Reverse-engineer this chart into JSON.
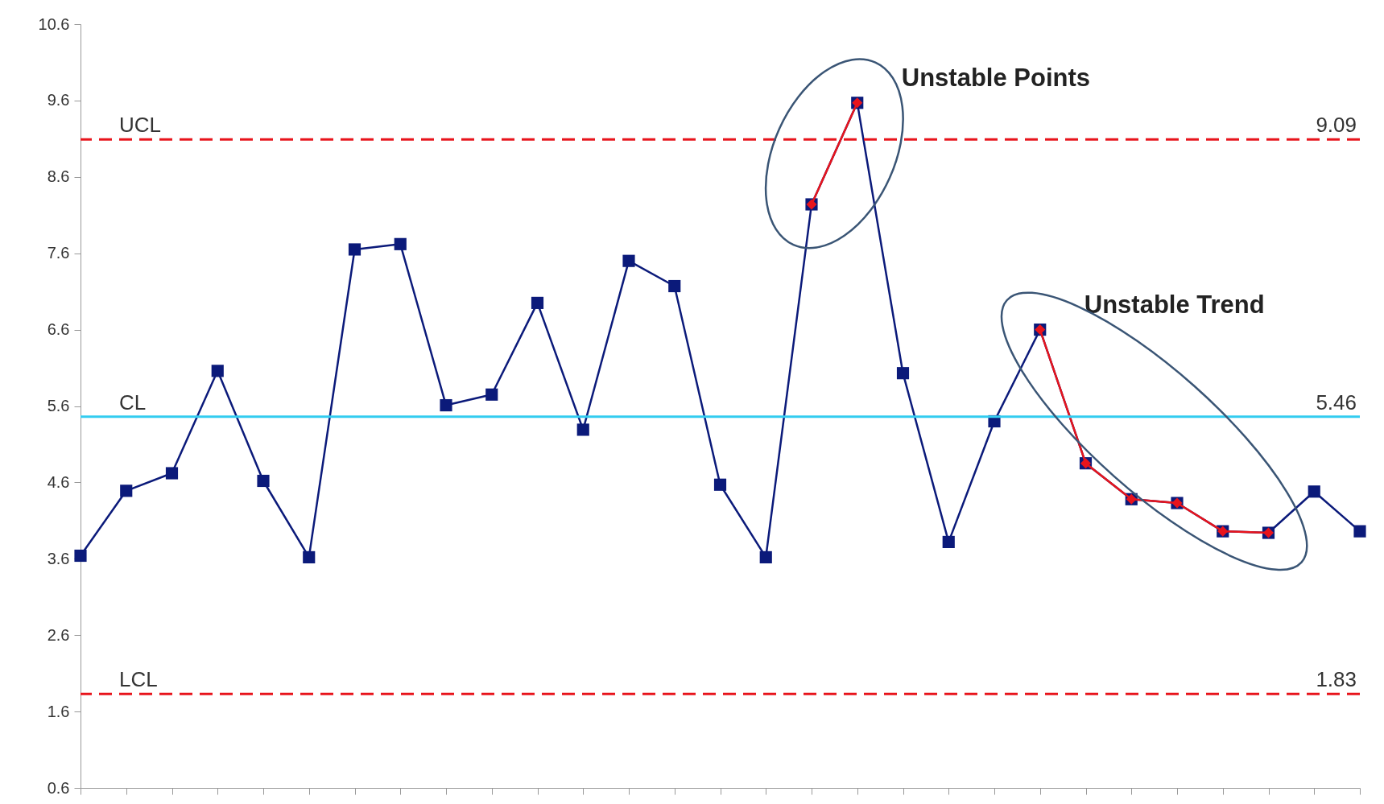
{
  "chart_data": {
    "type": "line",
    "categories": [
      null,
      null,
      null,
      null,
      null,
      null,
      null,
      null,
      null,
      null,
      null,
      null,
      null,
      null,
      null,
      null,
      null,
      null,
      null,
      null,
      null,
      null,
      null,
      null,
      null,
      null,
      null,
      null,
      null
    ],
    "series": [
      {
        "color": "#0b1a7a",
        "marker": "square",
        "values": [
          3.64,
          4.49,
          4.72,
          6.06,
          4.62,
          3.62,
          7.65,
          7.72,
          5.61,
          5.75,
          6.95,
          5.29,
          7.5,
          7.17,
          4.57,
          3.62,
          8.24,
          9.57,
          6.03,
          3.82,
          5.4,
          6.6,
          4.85,
          4.38,
          4.33,
          3.96,
          3.94,
          4.48,
          3.96
        ]
      },
      {
        "color": "#e8141c",
        "marker": "diamond",
        "values": [
          null,
          null,
          null,
          null,
          null,
          null,
          null,
          null,
          null,
          null,
          null,
          null,
          null,
          null,
          null,
          null,
          8.24,
          9.57,
          null,
          null,
          null,
          6.6,
          4.85,
          4.38,
          4.33,
          3.96,
          3.94,
          null,
          null
        ]
      }
    ],
    "ylim": [
      0.6,
      10.6
    ],
    "yticks": [
      0.6,
      1.6,
      2.6,
      3.6,
      4.6,
      5.6,
      6.6,
      7.6,
      8.6,
      9.6,
      10.6
    ],
    "ref_lines": [
      {
        "axis": "y",
        "value": 9.09,
        "label": "UCL",
        "color": "#e8141c",
        "line_style": "dashed"
      },
      {
        "axis": "y",
        "value": 5.46,
        "label": "CL",
        "color": "#33ccf0",
        "line_style": "solid"
      },
      {
        "axis": "y",
        "value": 1.83,
        "label": "LCL",
        "color": "#e8141c",
        "line_style": "dashed"
      }
    ],
    "annotations": [
      "Unstable Points",
      "Unstable Trend",
      {
        "text": "9.09",
        "y": 9.09
      },
      {
        "text": "5.46",
        "y": 5.46
      },
      {
        "text": "1.83",
        "y": 1.83
      }
    ],
    "tick_labels": "y",
    "grid": false
  }
}
